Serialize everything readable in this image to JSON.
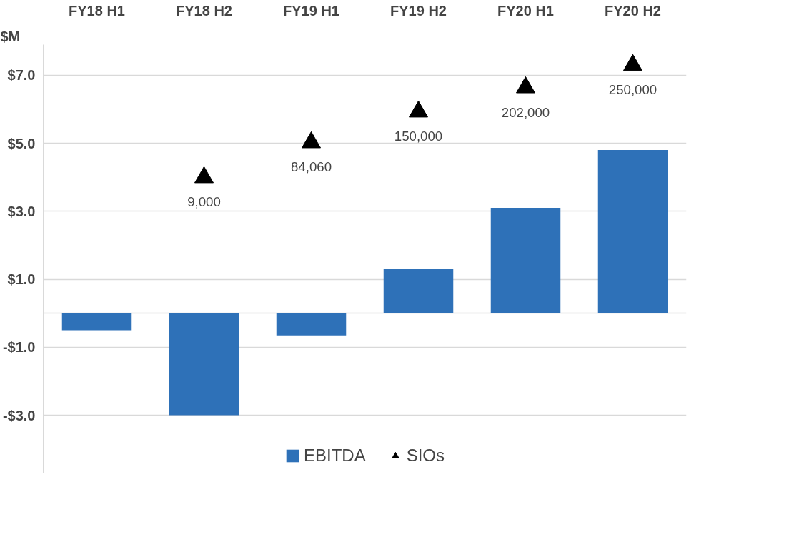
{
  "chart_data": {
    "type": "bar",
    "ylabel": "$M",
    "categories": [
      "FY18 H1",
      "FY18 H2",
      "FY19 H1",
      "FY19 H2",
      "FY20 H1",
      "FY20 H2"
    ],
    "series": [
      {
        "name": "EBITDA",
        "color": "#2e71b8",
        "values": [
          -0.5,
          -3.0,
          -0.65,
          1.3,
          3.1,
          4.8
        ]
      },
      {
        "name": "SIOs",
        "type": "scatter",
        "axis": "y2",
        "marker": "triangle",
        "color": "#000000",
        "values": [
          null,
          9000,
          84060,
          150000,
          202000,
          250000
        ],
        "value_labels": [
          null,
          "9,000",
          "84,060",
          "150,000",
          "202,000",
          "250,000"
        ]
      }
    ],
    "ylim": [
      -4.7,
      7.9
    ],
    "yticks": [
      {
        "value": -3,
        "label": "-$3.0"
      },
      {
        "value": -1,
        "label": "-$1.0"
      },
      {
        "value": 0,
        "label": null
      },
      {
        "value": 1,
        "label": "$1.0"
      },
      {
        "value": 3,
        "label": "$3.0"
      },
      {
        "value": 5,
        "label": "$5.0"
      },
      {
        "value": 7,
        "label": "$7.0"
      }
    ],
    "y2lim": [
      -626000,
      294000
    ],
    "grid": "y",
    "legend": "bottom"
  }
}
